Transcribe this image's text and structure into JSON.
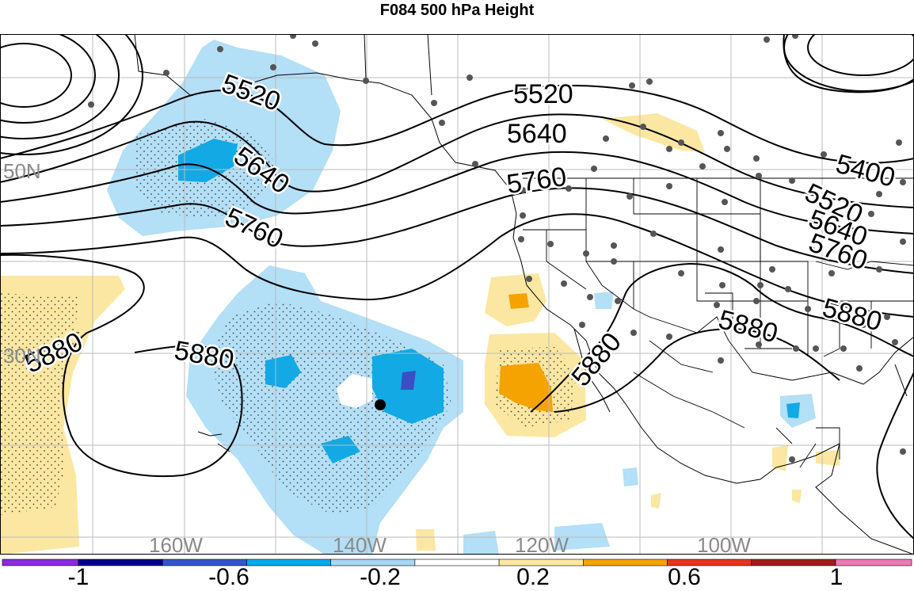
{
  "title": "F084 500 hPa Height",
  "lon_labels": [
    "160W",
    "140W",
    "120W",
    "100W"
  ],
  "lat_labels": [
    "50N",
    "30N"
  ],
  "contour_labels": [
    "5520",
    "5640",
    "5760",
    "5880",
    "5400"
  ],
  "colorbar": {
    "tick_labels": [
      "-1",
      "-0.6",
      "-0.2",
      "0.2",
      "0.6",
      "1"
    ],
    "colors": [
      "#8a2be2",
      "#00008b",
      "#3355cc",
      "#00aaee",
      "#a6d8f5",
      "#ffffff",
      "#ffe9a0",
      "#f5a300",
      "#e8341c",
      "#a61a1a",
      "#ee7bb5"
    ]
  },
  "colors": {
    "positive_light": "#fbe7a1",
    "positive_mid": "#f5a300",
    "negative_light": "#b3dff7",
    "negative_mid": "#12a9e5",
    "negative_dark": "#3b4fc4",
    "station_dot": "#555555"
  }
}
